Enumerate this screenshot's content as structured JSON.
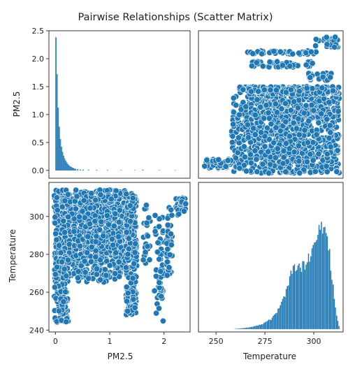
{
  "chart_data": {
    "type": "scatter_matrix",
    "title": "Pairwise Relationships (Scatter Matrix)",
    "variables": [
      "PM2.5",
      "Temperature"
    ],
    "colors": {
      "marker": "#1f77b4",
      "marker_edge": "#ffffff",
      "hist_fill": "#1f77b4"
    },
    "grid": false,
    "panels": [
      {
        "id": "pm25-hist",
        "type": "histogram",
        "x": "PM2.5",
        "xlim": [
          -0.12,
          2.48
        ],
        "ylim": [
          -0.14,
          2.5
        ],
        "yticks": [
          0.0,
          0.5,
          1.0,
          1.5,
          2.0,
          2.5
        ],
        "ytick_labels": [
          "0.0",
          "0.5",
          "1.0",
          "1.5",
          "2.0",
          "2.5"
        ],
        "ylabel": "PM2.5",
        "bins": [
          [
            0.0,
            2.38
          ],
          [
            0.02,
            1.72
          ],
          [
            0.04,
            1.12
          ],
          [
            0.06,
            0.78
          ],
          [
            0.08,
            0.56
          ],
          [
            0.1,
            0.42
          ],
          [
            0.12,
            0.33
          ],
          [
            0.14,
            0.26
          ],
          [
            0.16,
            0.21
          ],
          [
            0.18,
            0.17
          ],
          [
            0.2,
            0.14
          ],
          [
            0.22,
            0.11
          ],
          [
            0.24,
            0.09
          ],
          [
            0.26,
            0.07
          ],
          [
            0.28,
            0.06
          ],
          [
            0.3,
            0.05
          ],
          [
            0.32,
            0.04
          ],
          [
            0.34,
            0.03
          ],
          [
            0.36,
            0.025
          ],
          [
            0.4,
            0.02
          ],
          [
            0.45,
            0.015
          ],
          [
            0.5,
            0.012
          ],
          [
            0.6,
            0.01
          ],
          [
            0.75,
            0.008
          ],
          [
            0.95,
            0.006
          ],
          [
            1.2,
            0.005
          ],
          [
            1.45,
            0.004
          ],
          [
            1.6,
            0.01
          ],
          [
            1.9,
            0.004
          ],
          [
            2.2,
            0.003
          ]
        ],
        "bin_width": 0.02
      },
      {
        "id": "pm25-vs-temp",
        "type": "scatter",
        "x": "Temperature",
        "y": "PM2.5",
        "xlim": [
          241,
          315
        ],
        "ylim": [
          -0.14,
          2.5
        ],
        "clusters": [
          {
            "x": [
              258,
              313
            ],
            "y": [
              -0.05,
              1.33
            ],
            "n": 900
          },
          {
            "x": [
              244,
              258
            ],
            "y": [
              0.02,
              0.2
            ],
            "n": 60
          },
          {
            "x": [
              262,
              313
            ],
            "y": [
              1.36,
              1.5
            ],
            "n": 250
          },
          {
            "x": [
              265,
              300
            ],
            "y": [
              0.1,
              1.2
            ],
            "n": 120
          },
          {
            "x": [
              268,
              300
            ],
            "y": [
              1.85,
              1.95
            ],
            "n": 40
          },
          {
            "x": [
              266,
              302
            ],
            "y": [
              2.08,
              2.14
            ],
            "n": 40
          },
          {
            "x": [
              300,
              313
            ],
            "y": [
              2.2,
              2.4
            ],
            "n": 30
          },
          {
            "x": [
              297,
              310
            ],
            "y": [
              1.6,
              1.75
            ],
            "n": 25
          }
        ]
      },
      {
        "id": "temp-vs-pm25",
        "type": "scatter",
        "x": "PM2.5",
        "y": "Temperature",
        "xlim": [
          -0.12,
          2.48
        ],
        "ylim": [
          239,
          318
        ],
        "xticks": [
          0,
          1,
          2
        ],
        "xtick_labels": [
          "0",
          "1",
          "2"
        ],
        "yticks": [
          240,
          260,
          280,
          300
        ],
        "ytick_labels": [
          "240",
          "260",
          "280",
          "300"
        ],
        "xlabel": "PM2.5",
        "ylabel": "Temperature",
        "clusters": [
          {
            "x": [
              -0.02,
              1.3
            ],
            "y": [
              268,
              314
            ],
            "n": 900
          },
          {
            "x": [
              -0.02,
              0.25
            ],
            "y": [
              244,
              278
            ],
            "n": 120
          },
          {
            "x": [
              1.3,
              1.5
            ],
            "y": [
              248,
              312
            ],
            "n": 250
          },
          {
            "x": [
              0.4,
              1.2
            ],
            "y": [
              265,
              290
            ],
            "n": 100
          },
          {
            "x": [
              1.8,
              2.0
            ],
            "y": [
              244,
              302
            ],
            "n": 50
          },
          {
            "x": [
              2.05,
              2.15
            ],
            "y": [
              268,
              305
            ],
            "n": 40
          },
          {
            "x": [
              2.2,
              2.4
            ],
            "y": [
              300,
              310
            ],
            "n": 30
          },
          {
            "x": [
              1.6,
              1.75
            ],
            "y": [
              270,
              306
            ],
            "n": 25
          }
        ]
      },
      {
        "id": "temp-hist",
        "type": "histogram",
        "x": "Temperature",
        "xlim": [
          241,
          315
        ],
        "xticks": [
          250,
          275,
          300
        ],
        "xtick_labels": [
          "250",
          "275",
          "300"
        ],
        "xlabel": "Temperature",
        "density_points": [
          [
            258,
            0.0
          ],
          [
            262,
            0.004
          ],
          [
            266,
            0.008
          ],
          [
            270,
            0.015
          ],
          [
            274,
            0.028
          ],
          [
            278,
            0.05
          ],
          [
            282,
            0.1
          ],
          [
            285,
            0.17
          ],
          [
            288,
            0.26
          ],
          [
            290,
            0.31
          ],
          [
            292,
            0.29
          ],
          [
            294,
            0.3
          ],
          [
            296,
            0.32
          ],
          [
            298,
            0.35
          ],
          [
            300,
            0.4
          ],
          [
            302,
            0.46
          ],
          [
            304,
            0.5
          ],
          [
            305,
            0.49
          ],
          [
            307,
            0.43
          ],
          [
            309,
            0.26
          ],
          [
            311,
            0.08
          ],
          [
            313,
            0.0
          ]
        ],
        "density_max": 0.52,
        "bin_width": 0.6
      }
    ]
  }
}
